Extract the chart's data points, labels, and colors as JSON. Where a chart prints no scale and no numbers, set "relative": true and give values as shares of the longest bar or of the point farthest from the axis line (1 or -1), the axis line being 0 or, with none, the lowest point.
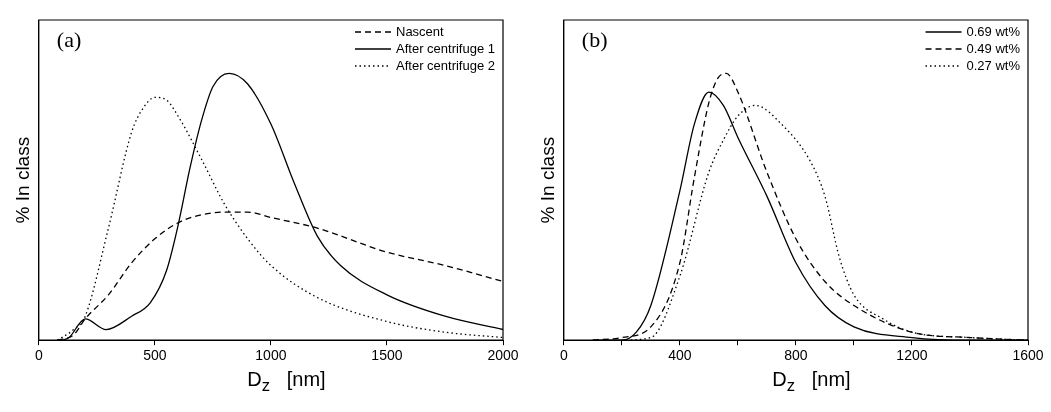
{
  "chart_data": [
    {
      "type": "line",
      "relative": true,
      "xlabel": "D$_{z}$   [nm]",
      "ylabel": "% In class",
      "annotations": [
        "(a)"
      ],
      "xlim": [
        0,
        2000
      ],
      "xticks": [
        0,
        500,
        1000,
        1500,
        2000
      ],
      "grid": false,
      "legend": "top right",
      "marker": "none",
      "series": [
        {
          "name": "Nascent",
          "color": "#000000",
          "line_style": "dashed",
          "x": [
            80,
            150,
            200,
            300,
            400,
            500,
            600,
            700,
            800,
            900,
            1000,
            1200,
            1500,
            1750,
            2000
          ],
          "values": [
            0,
            0.02,
            0.08,
            0.17,
            0.29,
            0.38,
            0.44,
            0.47,
            0.48,
            0.48,
            0.46,
            0.42,
            0.33,
            0.28,
            0.22
          ]
        },
        {
          "name": "After centrifuge 1",
          "color": "#000000",
          "line_style": "solid",
          "x": [
            100,
            130,
            200,
            290,
            400,
            480,
            550,
            600,
            650,
            700,
            750,
            820,
            900,
            1000,
            1100,
            1200,
            1300,
            1500,
            1750,
            2000
          ],
          "values": [
            0,
            0.01,
            0.08,
            0.04,
            0.09,
            0.14,
            0.26,
            0.43,
            0.64,
            0.82,
            0.95,
            1,
            0.96,
            0.81,
            0.59,
            0.39,
            0.28,
            0.17,
            0.09,
            0.04
          ]
        },
        {
          "name": "After centrifuge 2",
          "color": "#000000",
          "line_style": "dotted",
          "x": [
            80,
            150,
            200,
            300,
            400,
            450,
            500,
            550,
            600,
            700,
            800,
            900,
            1000,
            1200,
            1500,
            1750,
            2000
          ],
          "values": [
            0,
            0.04,
            0.09,
            0.42,
            0.78,
            0.87,
            0.91,
            0.9,
            0.84,
            0.68,
            0.51,
            0.38,
            0.28,
            0.16,
            0.07,
            0.03,
            0.01
          ]
        }
      ]
    },
    {
      "type": "line",
      "relative": true,
      "xlabel": "D$_{z}$   [nm]",
      "ylabel": "% In class",
      "annotations": [
        "(b)"
      ],
      "xlim": [
        0,
        1600
      ],
      "xticks": [
        0,
        {
          "value": 200,
          "label": null
        },
        400,
        {
          "value": 600,
          "label": null
        },
        800,
        {
          "value": 1000,
          "label": null
        },
        1200,
        {
          "value": 1400,
          "label": null
        },
        1600
      ],
      "grid": false,
      "legend": "top right",
      "marker": "none",
      "series": [
        {
          "name": "0.69 wt%",
          "color": "#000000",
          "line_style": "solid",
          "x": [
            100,
            200,
            250,
            300,
            400,
            450,
            500,
            550,
            600,
            700,
            800,
            900,
            1000,
            1200,
            1400,
            1600
          ],
          "values": [
            0,
            0,
            0.03,
            0.13,
            0.56,
            0.81,
            0.93,
            0.88,
            0.76,
            0.54,
            0.29,
            0.13,
            0.05,
            0.01,
            0,
            0
          ]
        },
        {
          "name": "0.49 wt%",
          "color": "#000000",
          "line_style": "dashed",
          "x": [
            100,
            200,
            300,
            400,
            450,
            500,
            530,
            560,
            600,
            700,
            800,
            900,
            1000,
            1200,
            1400,
            1600
          ],
          "values": [
            0,
            0.01,
            0.05,
            0.29,
            0.61,
            0.89,
            0.98,
            1,
            0.93,
            0.63,
            0.38,
            0.22,
            0.13,
            0.03,
            0.01,
            0
          ]
        },
        {
          "name": "0.27 wt%",
          "color": "#000000",
          "line_style": "dotted",
          "x": [
            200,
            300,
            400,
            500,
            550,
            600,
            660,
            750,
            850,
            900,
            950,
            1000,
            1100,
            1200,
            1400,
            1600
          ],
          "values": [
            0,
            0.01,
            0.24,
            0.63,
            0.75,
            0.84,
            0.88,
            0.81,
            0.67,
            0.54,
            0.31,
            0.17,
            0.08,
            0.03,
            0.01,
            0
          ]
        }
      ]
    }
  ]
}
